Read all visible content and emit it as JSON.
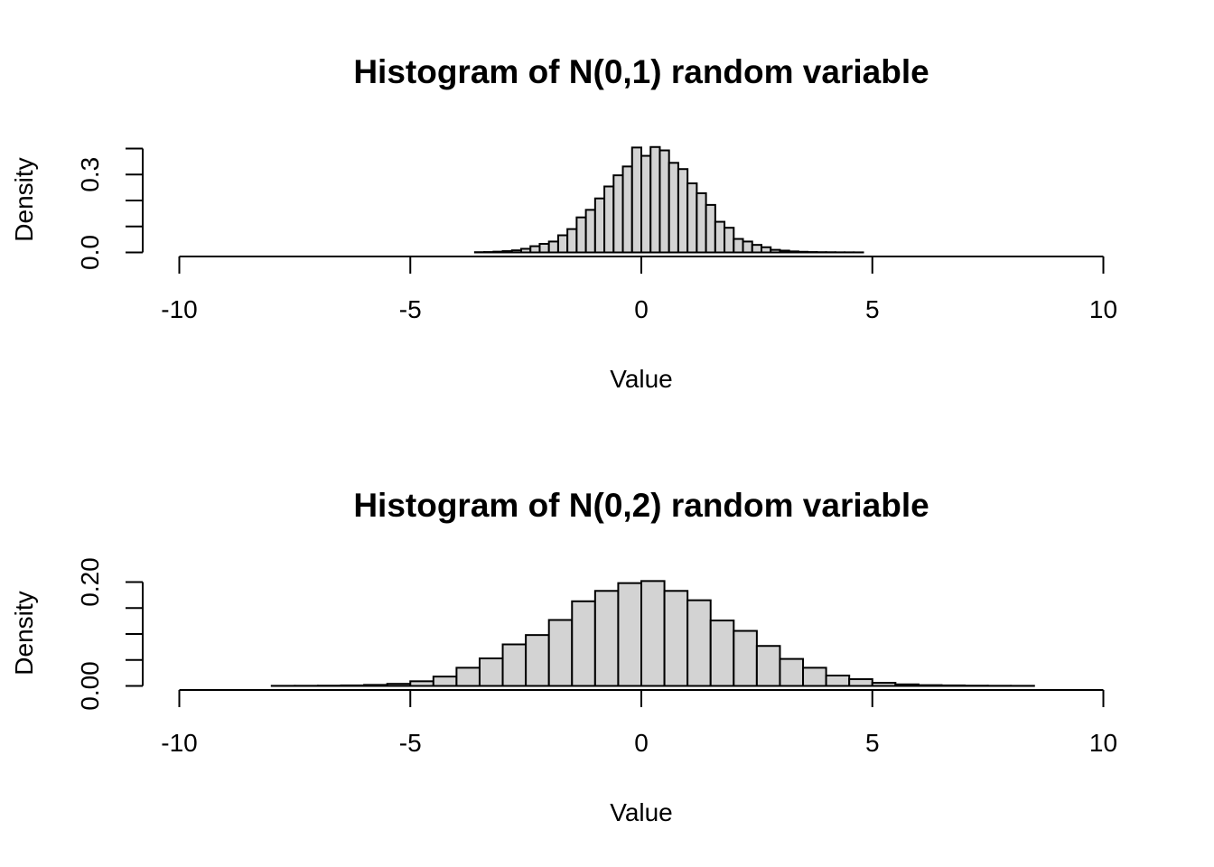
{
  "colors": {
    "bar_fill": "#d3d3d3",
    "bar_stroke": "#000000",
    "background": "#ffffff"
  },
  "chart_data": [
    {
      "type": "bar",
      "title": "Histogram of N(0,1) random variable",
      "xlabel": "Value",
      "ylabel": "Density",
      "xlim": [
        -10,
        10
      ],
      "ylim": [
        0,
        0.4
      ],
      "x_ticks": [
        -10,
        -5,
        0,
        5,
        10
      ],
      "x_tick_labels": [
        "-10",
        "-5",
        "0",
        "5",
        "10"
      ],
      "y_ticks": [
        0.0,
        0.1,
        0.2,
        0.3,
        0.4
      ],
      "y_tick_labels": [
        "0.0",
        "",
        "",
        "0.3",
        ""
      ],
      "grid": false,
      "bins": [
        {
          "x0": -3.6,
          "x1": -3.4,
          "value": 0.001
        },
        {
          "x0": -3.4,
          "x1": -3.2,
          "value": 0.0015
        },
        {
          "x0": -3.2,
          "x1": -3.0,
          "value": 0.003
        },
        {
          "x0": -3.0,
          "x1": -2.8,
          "value": 0.005
        },
        {
          "x0": -2.8,
          "x1": -2.6,
          "value": 0.008
        },
        {
          "x0": -2.6,
          "x1": -2.4,
          "value": 0.014
        },
        {
          "x0": -2.4,
          "x1": -2.2,
          "value": 0.024
        },
        {
          "x0": -2.2,
          "x1": -2.0,
          "value": 0.033
        },
        {
          "x0": -2.0,
          "x1": -1.8,
          "value": 0.042
        },
        {
          "x0": -1.8,
          "x1": -1.6,
          "value": 0.066
        },
        {
          "x0": -1.6,
          "x1": -1.4,
          "value": 0.09
        },
        {
          "x0": -1.4,
          "x1": -1.2,
          "value": 0.135
        },
        {
          "x0": -1.2,
          "x1": -1.0,
          "value": 0.164
        },
        {
          "x0": -1.0,
          "x1": -0.8,
          "value": 0.208
        },
        {
          "x0": -0.8,
          "x1": -0.6,
          "value": 0.254
        },
        {
          "x0": -0.6,
          "x1": -0.4,
          "value": 0.297
        },
        {
          "x0": -0.4,
          "x1": -0.2,
          "value": 0.331
        },
        {
          "x0": -0.2,
          "x1": 0.0,
          "value": 0.404
        },
        {
          "x0": 0.0,
          "x1": 0.2,
          "value": 0.372
        },
        {
          "x0": 0.2,
          "x1": 0.4,
          "value": 0.406
        },
        {
          "x0": 0.4,
          "x1": 0.6,
          "value": 0.393
        },
        {
          "x0": 0.6,
          "x1": 0.8,
          "value": 0.345
        },
        {
          "x0": 0.8,
          "x1": 1.0,
          "value": 0.321
        },
        {
          "x0": 1.0,
          "x1": 1.2,
          "value": 0.266
        },
        {
          "x0": 1.2,
          "x1": 1.4,
          "value": 0.228
        },
        {
          "x0": 1.4,
          "x1": 1.6,
          "value": 0.183
        },
        {
          "x0": 1.6,
          "x1": 1.8,
          "value": 0.118
        },
        {
          "x0": 1.8,
          "x1": 2.0,
          "value": 0.095
        },
        {
          "x0": 2.0,
          "x1": 2.2,
          "value": 0.052
        },
        {
          "x0": 2.2,
          "x1": 2.4,
          "value": 0.042
        },
        {
          "x0": 2.4,
          "x1": 2.6,
          "value": 0.029
        },
        {
          "x0": 2.6,
          "x1": 2.8,
          "value": 0.02
        },
        {
          "x0": 2.8,
          "x1": 3.0,
          "value": 0.01
        },
        {
          "x0": 3.0,
          "x1": 3.2,
          "value": 0.007
        },
        {
          "x0": 3.2,
          "x1": 3.4,
          "value": 0.004
        },
        {
          "x0": 3.4,
          "x1": 3.6,
          "value": 0.0025
        },
        {
          "x0": 3.6,
          "x1": 3.8,
          "value": 0.0015
        },
        {
          "x0": 3.8,
          "x1": 4.0,
          "value": 0.001
        },
        {
          "x0": 4.0,
          "x1": 4.2,
          "value": 0.0008
        },
        {
          "x0": 4.2,
          "x1": 4.4,
          "value": 0.0005
        },
        {
          "x0": 4.4,
          "x1": 4.6,
          "value": 0.0004
        },
        {
          "x0": 4.6,
          "x1": 4.8,
          "value": 0.0003
        }
      ]
    },
    {
      "type": "bar",
      "title": "Histogram of N(0,2) random variable",
      "xlabel": "Value",
      "ylabel": "Density",
      "xlim": [
        -10,
        10
      ],
      "ylim": [
        0,
        0.2
      ],
      "x_ticks": [
        -10,
        -5,
        0,
        5,
        10
      ],
      "x_tick_labels": [
        "-10",
        "-5",
        "0",
        "5",
        "10"
      ],
      "y_ticks": [
        0.0,
        0.05,
        0.1,
        0.15,
        0.2
      ],
      "y_tick_labels": [
        "0.00",
        "",
        "",
        "",
        "0.20"
      ],
      "grid": false,
      "bins": [
        {
          "x0": -8.0,
          "x1": -7.5,
          "value": 0.0002
        },
        {
          "x0": -7.5,
          "x1": -7.0,
          "value": 0.0003
        },
        {
          "x0": -7.0,
          "x1": -6.5,
          "value": 0.0005
        },
        {
          "x0": -6.5,
          "x1": -6.0,
          "value": 0.001
        },
        {
          "x0": -6.0,
          "x1": -5.5,
          "value": 0.002
        },
        {
          "x0": -5.5,
          "x1": -5.0,
          "value": 0.004
        },
        {
          "x0": -5.0,
          "x1": -4.5,
          "value": 0.009
        },
        {
          "x0": -4.5,
          "x1": -4.0,
          "value": 0.018
        },
        {
          "x0": -4.0,
          "x1": -3.5,
          "value": 0.035
        },
        {
          "x0": -3.5,
          "x1": -3.0,
          "value": 0.053
        },
        {
          "x0": -3.0,
          "x1": -2.5,
          "value": 0.08
        },
        {
          "x0": -2.5,
          "x1": -2.0,
          "value": 0.098
        },
        {
          "x0": -2.0,
          "x1": -1.5,
          "value": 0.127
        },
        {
          "x0": -1.5,
          "x1": -1.0,
          "value": 0.163
        },
        {
          "x0": -1.0,
          "x1": -0.5,
          "value": 0.183
        },
        {
          "x0": -0.5,
          "x1": 0.0,
          "value": 0.198
        },
        {
          "x0": 0.0,
          "x1": 0.5,
          "value": 0.202
        },
        {
          "x0": 0.5,
          "x1": 1.0,
          "value": 0.183
        },
        {
          "x0": 1.0,
          "x1": 1.5,
          "value": 0.165
        },
        {
          "x0": 1.5,
          "x1": 2.0,
          "value": 0.126
        },
        {
          "x0": 2.0,
          "x1": 2.5,
          "value": 0.106
        },
        {
          "x0": 2.5,
          "x1": 3.0,
          "value": 0.077
        },
        {
          "x0": 3.0,
          "x1": 3.5,
          "value": 0.052
        },
        {
          "x0": 3.5,
          "x1": 4.0,
          "value": 0.035
        },
        {
          "x0": 4.0,
          "x1": 4.5,
          "value": 0.02
        },
        {
          "x0": 4.5,
          "x1": 5.0,
          "value": 0.013
        },
        {
          "x0": 5.0,
          "x1": 5.5,
          "value": 0.006
        },
        {
          "x0": 5.5,
          "x1": 6.0,
          "value": 0.003
        },
        {
          "x0": 6.0,
          "x1": 6.5,
          "value": 0.0015
        },
        {
          "x0": 6.5,
          "x1": 7.0,
          "value": 0.001
        },
        {
          "x0": 7.0,
          "x1": 7.5,
          "value": 0.0005
        },
        {
          "x0": 7.5,
          "x1": 8.0,
          "value": 0.0003
        },
        {
          "x0": 8.0,
          "x1": 8.5,
          "value": 0.0002
        }
      ]
    }
  ]
}
